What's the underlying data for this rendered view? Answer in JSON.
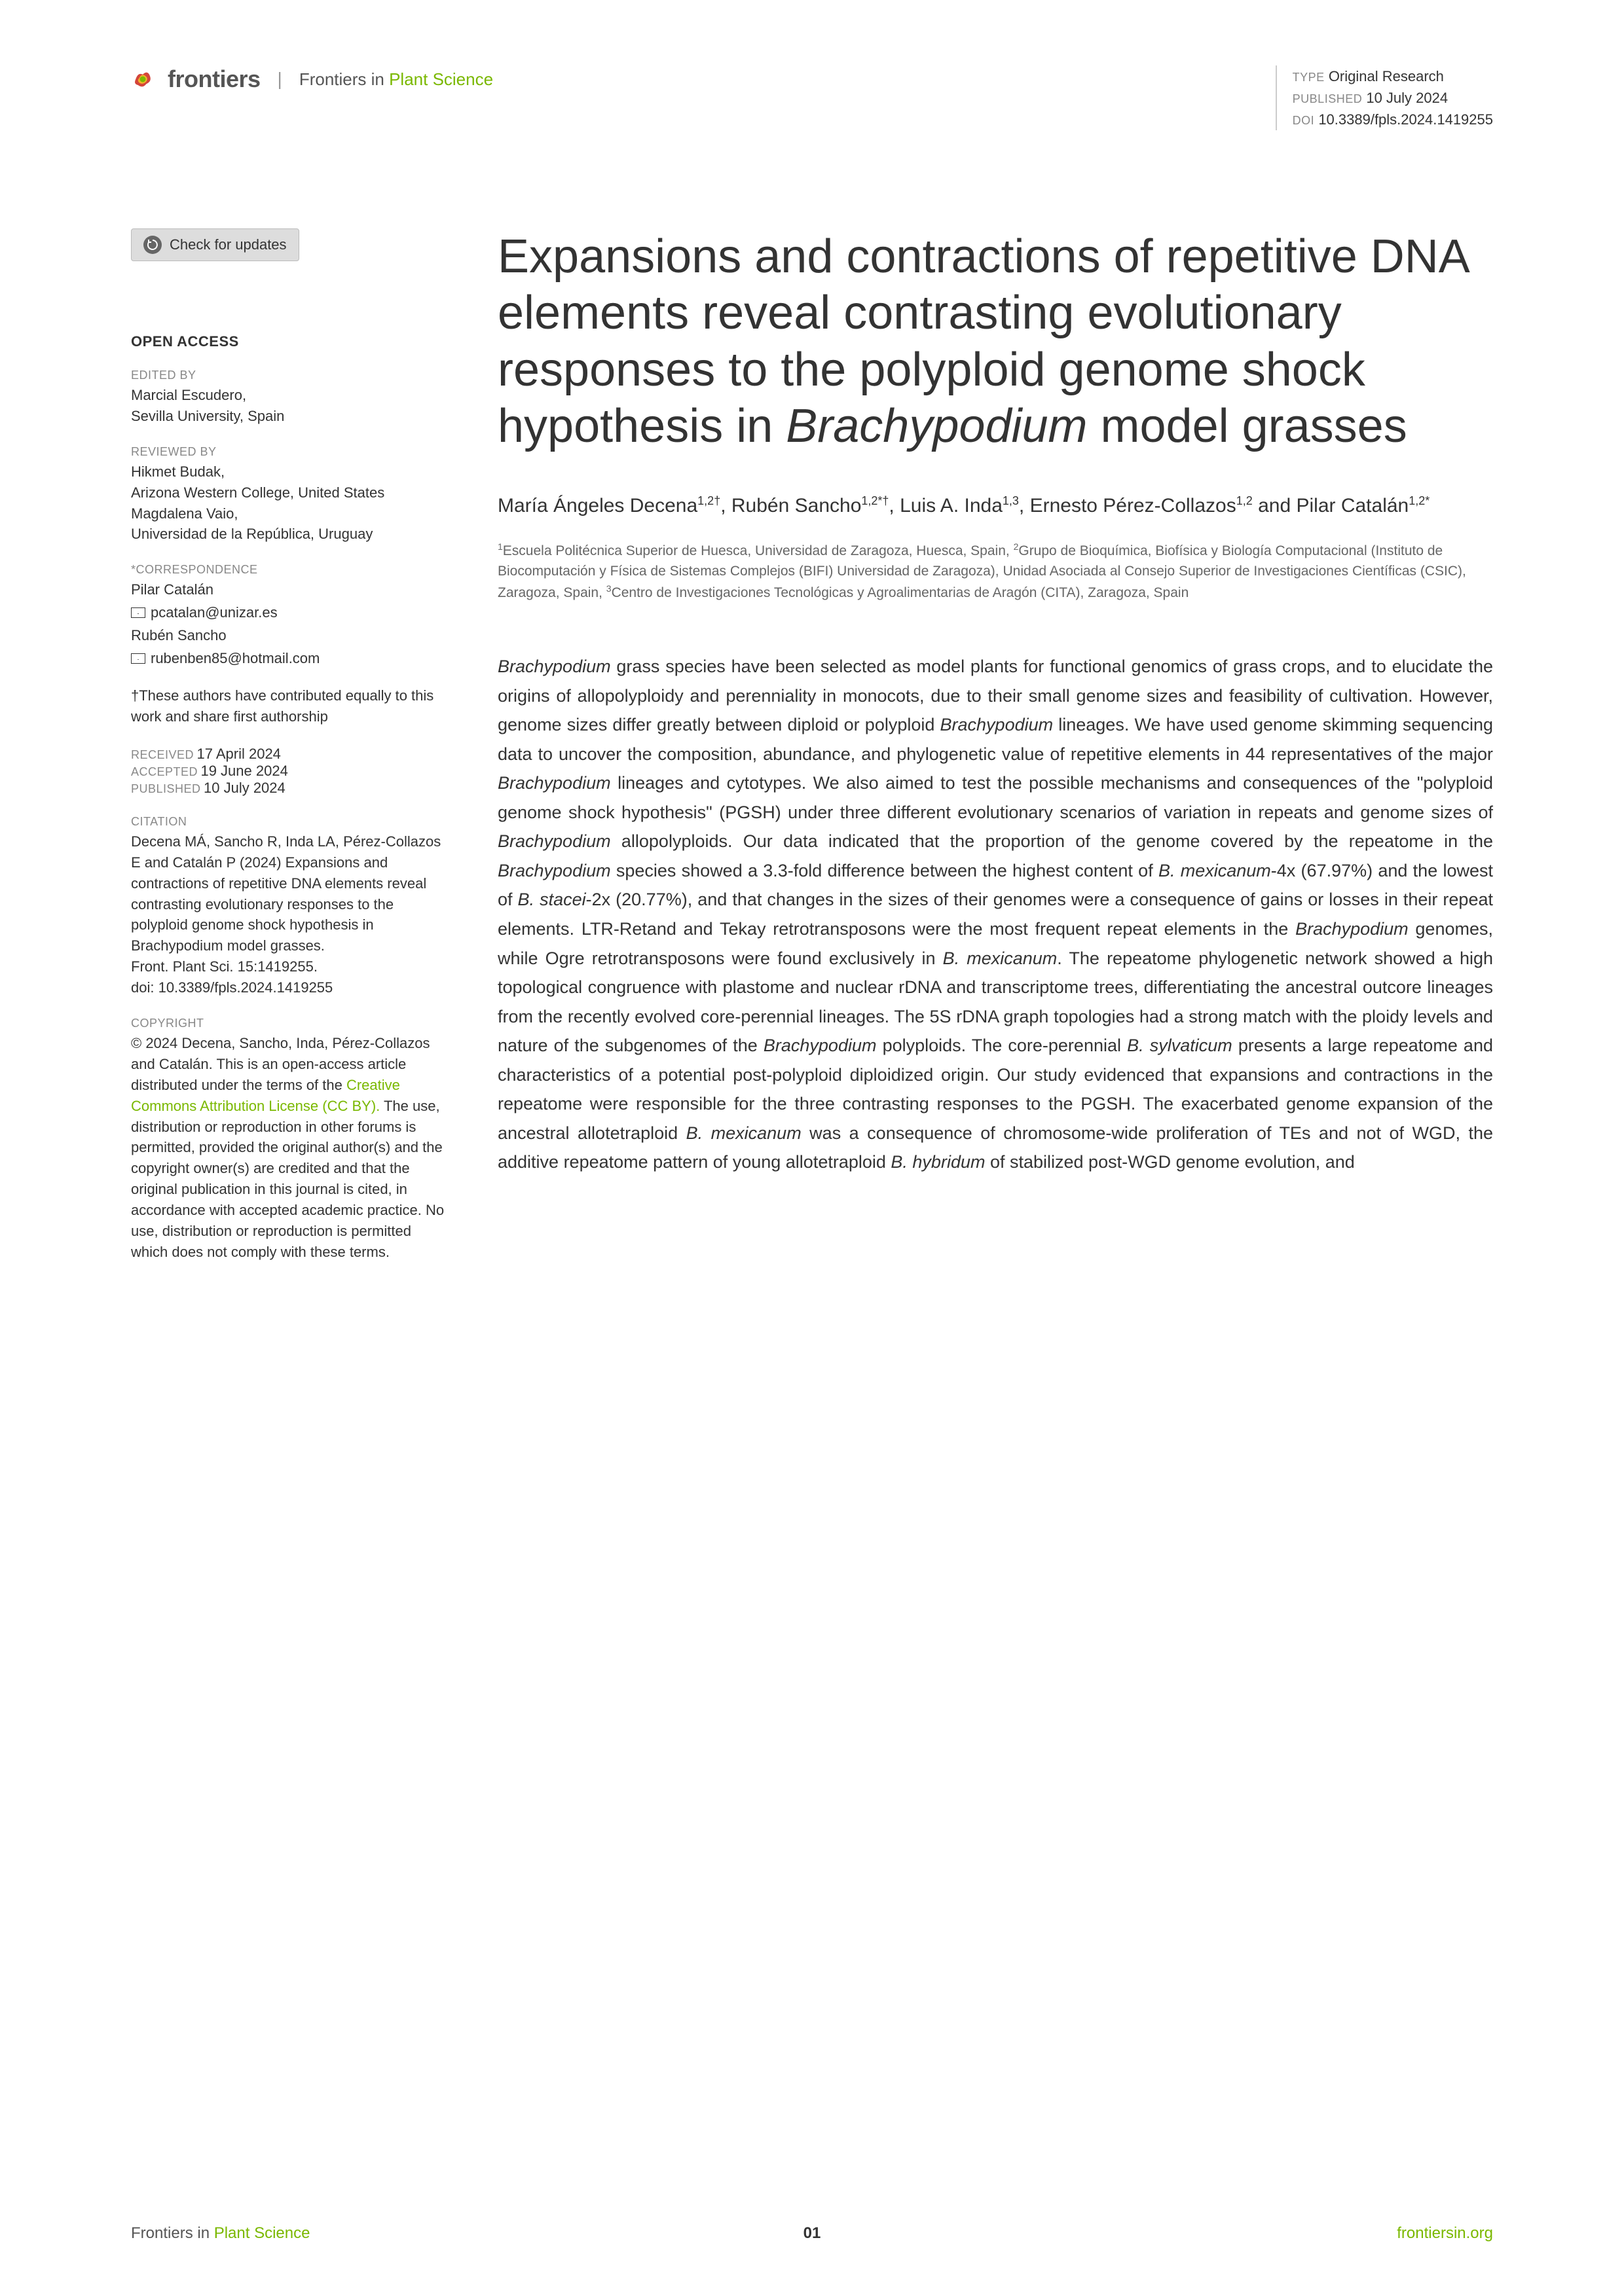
{
  "header": {
    "brand": "frontiers",
    "journal_prefix": "Frontiers in ",
    "journal_suffix": "Plant Science",
    "type_label": "TYPE",
    "type_value": "Original Research",
    "published_label": "PUBLISHED",
    "published_value": "10 July 2024",
    "doi_label": "DOI",
    "doi_value": "10.3389/fpls.2024.1419255"
  },
  "sidebar": {
    "check_updates": "Check for updates",
    "open_access": "OPEN ACCESS",
    "edited_label": "EDITED BY",
    "edited_by": "Marcial Escudero,\nSevilla University, Spain",
    "reviewed_label": "REVIEWED BY",
    "reviewed_by": "Hikmet Budak,\nArizona Western College, United States\nMagdalena Vaio,\nUniversidad de la República, Uruguay",
    "correspondence_label": "*CORRESPONDENCE",
    "corr1_name": "Pilar Catalán",
    "corr1_email": "pcatalan@unizar.es",
    "corr2_name": "Rubén Sancho",
    "corr2_email": "rubenben85@hotmail.com",
    "contrib_note": "†These authors have contributed equally to this work and share first authorship",
    "received_label": "RECEIVED",
    "received_value": "17 April 2024",
    "accepted_label": "ACCEPTED",
    "accepted_value": "19 June 2024",
    "published_label": "PUBLISHED",
    "published_value": "10 July 2024",
    "citation_label": "CITATION",
    "citation_text": "Decena MÁ, Sancho R, Inda LA, Pérez-Collazos E and Catalán P (2024) Expansions and contractions of repetitive DNA elements reveal contrasting evolutionary responses to the polyploid genome shock hypothesis in Brachypodium model grasses.\nFront. Plant Sci. 15:1419255.\ndoi: 10.3389/fpls.2024.1419255",
    "copyright_label": "COPYRIGHT",
    "copyright_pre": "© 2024 Decena, Sancho, Inda, Pérez-Collazos and Catalán. This is an open-access article distributed under the terms of the ",
    "copyright_link": "Creative Commons Attribution License (CC BY).",
    "copyright_post": " The use, distribution or reproduction in other forums is permitted, provided the original author(s) and the copyright owner(s) are credited and that the original publication in this journal is cited, in accordance with accepted academic practice. No use, distribution or reproduction is permitted which does not comply with these terms."
  },
  "article": {
    "title_pre": "Expansions and contractions of repetitive DNA elements reveal contrasting evolutionary responses to the polyploid genome shock hypothesis in ",
    "title_em": "Brachypodium",
    "title_post": " model grasses",
    "authors_html": "María Ángeles Decena<sup>1,2†</sup>, Rubén Sancho<sup>1,2*†</sup>, Luis A. Inda<sup>1,3</sup>, Ernesto Pérez-Collazos<sup>1,2</sup> and Pilar Catalán<sup>1,2*</sup>",
    "affiliations_html": "<sup>1</sup>Escuela Politécnica Superior de Huesca, Universidad de Zaragoza, Huesca, Spain, <sup>2</sup>Grupo de Bioquímica, Biofísica y Biología Computacional (Instituto de Biocomputación y Física de Sistemas Complejos (BIFI) Universidad de Zaragoza), Unidad Asociada al Consejo Superior de Investigaciones Científicas (CSIC), Zaragoza, Spain, <sup>3</sup>Centro de Investigaciones Tecnológicas y Agroalimentarias de Aragón (CITA), Zaragoza, Spain",
    "abstract_html": "<em>Brachypodium</em> grass species have been selected as model plants for functional genomics of grass crops, and to elucidate the origins of allopolyploidy and perenniality in monocots, due to their small genome sizes and feasibility of cultivation. However, genome sizes differ greatly between diploid or polyploid <em>Brachypodium</em> lineages. We have used genome skimming sequencing data to uncover the composition, abundance, and phylogenetic value of repetitive elements in 44 representatives of the major <em>Brachypodium</em> lineages and cytotypes. We also aimed to test the possible mechanisms and consequences of the \"polyploid genome shock hypothesis\" (PGSH) under three different evolutionary scenarios of variation in repeats and genome sizes of <em>Brachypodium</em> allopolyploids. Our data indicated that the proportion of the genome covered by the repeatome in the <em>Brachypodium</em> species showed a 3.3-fold difference between the highest content of <em>B. mexicanum</em>-4x (67.97%) and the lowest of <em>B. stacei</em>-2x (20.77%), and that changes in the sizes of their genomes were a consequence of gains or losses in their repeat elements. LTR-Retand and Tekay retrotransposons were the most frequent repeat elements in the <em>Brachypodium</em> genomes, while Ogre retrotransposons were found exclusively in <em>B. mexicanum</em>. The repeatome phylogenetic network showed a high topological congruence with plastome and nuclear rDNA and transcriptome trees, differentiating the ancestral outcore lineages from the recently evolved core-perennial lineages. The 5S rDNA graph topologies had a strong match with the ploidy levels and nature of the subgenomes of the <em>Brachypodium</em> polyploids. The core-perennial <em>B. sylvaticum</em> presents a large repeatome and characteristics of a potential post-polyploid diploidized origin. Our study evidenced that expansions and contractions in the repeatome were responsible for the three contrasting responses to the PGSH. The exacerbated genome expansion of the ancestral allotetraploid <em>B. mexicanum</em> was a consequence of chromosome-wide proliferation of TEs and not of WGD, the additive repeatome pattern of young allotetraploid <em>B. hybridum</em> of stabilized post-WGD genome evolution, and"
  },
  "footer": {
    "left_prefix": "Frontiers in ",
    "left_suffix": "Plant Science",
    "page": "01",
    "right": "frontiersin.org"
  },
  "colors": {
    "green": "#7ab800",
    "text": "#333333",
    "muted": "#888888",
    "border": "#cccccc"
  }
}
